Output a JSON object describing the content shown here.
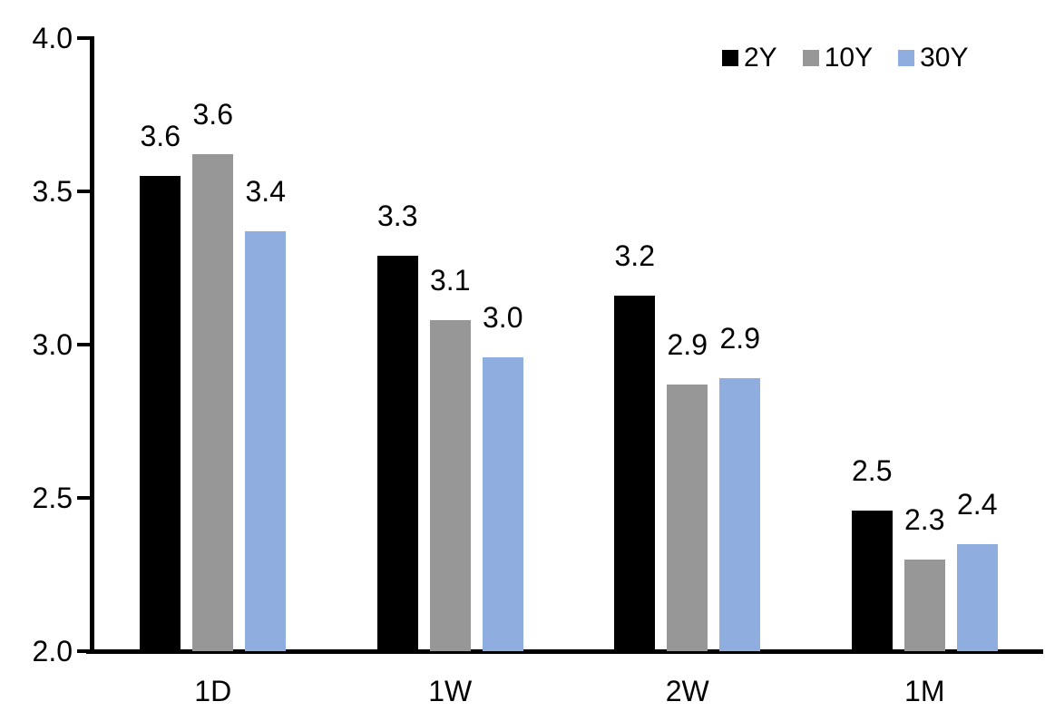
{
  "chart_data": {
    "type": "bar",
    "title": "",
    "categories": [
      "1D",
      "1W",
      "2W",
      "1M"
    ],
    "series": [
      {
        "name": "2Y",
        "color": "#000000",
        "values": [
          3.55,
          3.29,
          3.16,
          2.46
        ],
        "labels": [
          "3.6",
          "3.3",
          "3.2",
          "2.5"
        ]
      },
      {
        "name": "10Y",
        "color": "#979797",
        "values": [
          3.62,
          3.08,
          2.87,
          2.3
        ],
        "labels": [
          "3.6",
          "3.1",
          "2.9",
          "2.3"
        ]
      },
      {
        "name": "30Y",
        "color": "#8FADDF",
        "values": [
          3.37,
          2.96,
          2.89,
          2.35
        ],
        "labels": [
          "3.4",
          "3.0",
          "2.9",
          "2.4"
        ]
      }
    ],
    "y_axis": {
      "min": 2.0,
      "max": 4.0,
      "tick_values": [
        4.0,
        3.5,
        3.0,
        2.5,
        2.0
      ],
      "tick_labels": [
        "4.0",
        "3.5",
        "3.0",
        "2.5",
        "2.0"
      ]
    },
    "x_axis": {
      "labels": [
        "1D",
        "1W",
        "2W",
        "1M"
      ]
    },
    "legend": {
      "position": "top-right",
      "entries": [
        "2Y",
        "10Y",
        "30Y"
      ]
    },
    "grid": false,
    "colors": {
      "axis": "#000000",
      "text": "#000000",
      "background": "#ffffff"
    }
  }
}
